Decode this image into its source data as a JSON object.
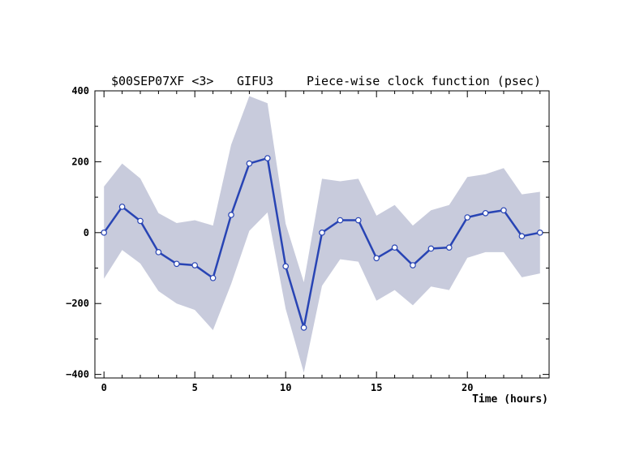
{
  "chart_data": {
    "type": "line",
    "title_parts": [
      "$00SEP07XF <3>",
      "GIFU3",
      "Piece-wise clock function (psec)"
    ],
    "xlabel": "Time (hours)",
    "ylabel": "",
    "xlim": [
      -0.5,
      24.5
    ],
    "ylim": [
      -410,
      400
    ],
    "xticks": [
      0,
      5,
      10,
      15,
      20
    ],
    "yticks": [
      -400,
      -200,
      0,
      200,
      400
    ],
    "yticks_labels": [
      "−400",
      "−200",
      "0",
      "200",
      "400"
    ],
    "grid": false,
    "series": [
      {
        "x": [
          0,
          1,
          2,
          3,
          4,
          5,
          6,
          7,
          8,
          9,
          10,
          11,
          12,
          13,
          14,
          15,
          16,
          17,
          18,
          19,
          20,
          21,
          22,
          23,
          24
        ],
        "values": [
          0,
          73,
          33,
          -55,
          -88,
          -92,
          -128,
          50,
          195,
          210,
          -95,
          -268,
          0,
          35,
          35,
          -72,
          -42,
          -92,
          -45,
          -42,
          43,
          55,
          63,
          -10,
          0
        ],
        "upper": [
          130,
          195,
          153,
          55,
          27,
          35,
          20,
          248,
          385,
          365,
          25,
          -140,
          152,
          145,
          152,
          48,
          78,
          20,
          63,
          78,
          157,
          165,
          182,
          108,
          115
        ],
        "lower": [
          -130,
          -49,
          -87,
          -165,
          -200,
          -218,
          -275,
          -145,
          5,
          57,
          -215,
          -395,
          -150,
          -75,
          -82,
          -192,
          -162,
          -205,
          -152,
          -162,
          -71,
          -55,
          -55,
          -126,
          -115
        ],
        "color": "#2844b4",
        "band_color": "#c8cbdc"
      }
    ]
  }
}
